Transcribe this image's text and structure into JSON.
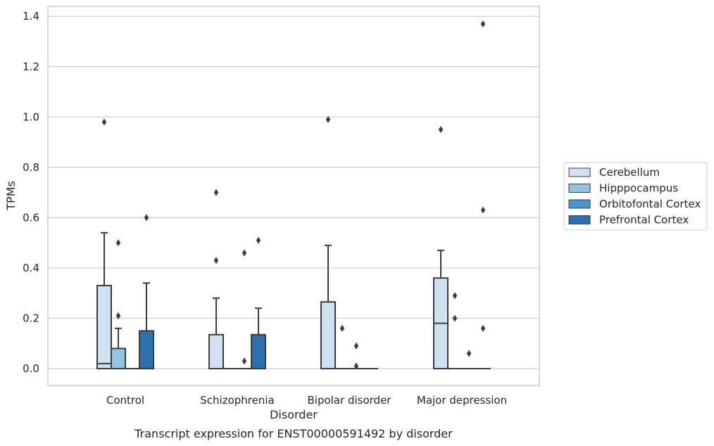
{
  "chart_data": {
    "type": "box",
    "caption": "Transcript expression for ENST00000591492 by disorder",
    "xlabel": "Disorder",
    "ylabel": "TPMs",
    "ylim": [
      -0.065,
      1.44
    ],
    "yticks": [
      0.0,
      0.2,
      0.4,
      0.6,
      0.8,
      1.0,
      1.2,
      1.4
    ],
    "ytick_labels": [
      "0.0",
      "0.2",
      "0.4",
      "0.6",
      "0.8",
      "1.0",
      "1.2",
      "1.4"
    ],
    "grid": "horizontal",
    "legend_position": "right",
    "categories": [
      "Control",
      "Schizophrenia",
      "Bipolar disorder",
      "Major depression"
    ],
    "series": [
      {
        "name": "Cerebellum",
        "color": "#d0e1f2",
        "boxes": [
          {
            "q1": 0.0,
            "median": 0.02,
            "q3": 0.33,
            "whisker_low": 0.0,
            "whisker_high": 0.54,
            "outliers": [
              0.98
            ]
          },
          {
            "q1": 0.0,
            "median": 0.0,
            "q3": 0.135,
            "whisker_low": 0.0,
            "whisker_high": 0.28,
            "outliers": [
              0.43,
              0.7
            ]
          },
          {
            "q1": 0.0,
            "median": 0.0,
            "q3": 0.265,
            "whisker_low": 0.0,
            "whisker_high": 0.49,
            "outliers": [
              0.99
            ]
          },
          {
            "q1": 0.0,
            "median": 0.18,
            "q3": 0.36,
            "whisker_low": 0.0,
            "whisker_high": 0.47,
            "outliers": [
              0.95
            ]
          }
        ]
      },
      {
        "name": "Hipppocampus",
        "color": "#94c4df",
        "boxes": [
          {
            "q1": 0.0,
            "median": 0.0,
            "q3": 0.08,
            "whisker_low": 0.0,
            "whisker_high": 0.16,
            "outliers": [
              0.21,
              0.5
            ]
          },
          {
            "q1": 0.0,
            "median": 0.0,
            "q3": 0.0,
            "whisker_low": 0.0,
            "whisker_high": 0.0,
            "outliers": []
          },
          {
            "q1": 0.0,
            "median": 0.0,
            "q3": 0.0,
            "whisker_low": 0.0,
            "whisker_high": 0.0,
            "outliers": [
              0.16
            ]
          },
          {
            "q1": 0.0,
            "median": 0.0,
            "q3": 0.0,
            "whisker_low": 0.0,
            "whisker_high": 0.0,
            "outliers": [
              0.2,
              0.29
            ]
          }
        ]
      },
      {
        "name": "Orbitofontal Cortex",
        "color": "#4a98c9",
        "boxes": [
          {
            "q1": 0.0,
            "median": 0.0,
            "q3": 0.0,
            "whisker_low": 0.0,
            "whisker_high": 0.0,
            "outliers": []
          },
          {
            "q1": 0.0,
            "median": 0.0,
            "q3": 0.0,
            "whisker_low": 0.0,
            "whisker_high": 0.0,
            "outliers": [
              0.03,
              0.46
            ]
          },
          {
            "q1": 0.0,
            "median": 0.0,
            "q3": 0.0,
            "whisker_low": 0.0,
            "whisker_high": 0.0,
            "outliers": [
              0.01,
              0.09
            ]
          },
          {
            "q1": 0.0,
            "median": 0.0,
            "q3": 0.0,
            "whisker_low": 0.0,
            "whisker_high": 0.0,
            "outliers": [
              0.06
            ]
          }
        ]
      },
      {
        "name": "Prefrontal Cortex",
        "color": "#2b6fad",
        "boxes": [
          {
            "q1": 0.0,
            "median": 0.0,
            "q3": 0.15,
            "whisker_low": 0.0,
            "whisker_high": 0.34,
            "outliers": [
              0.6
            ]
          },
          {
            "q1": 0.0,
            "median": 0.0,
            "q3": 0.135,
            "whisker_low": 0.0,
            "whisker_high": 0.24,
            "outliers": [
              0.51
            ]
          },
          {
            "q1": 0.0,
            "median": 0.0,
            "q3": 0.0,
            "whisker_low": 0.0,
            "whisker_high": 0.0,
            "outliers": []
          },
          {
            "q1": 0.0,
            "median": 0.0,
            "q3": 0.0,
            "whisker_low": 0.0,
            "whisker_high": 0.0,
            "outliers": [
              0.16,
              0.63,
              1.37
            ]
          }
        ]
      }
    ]
  }
}
